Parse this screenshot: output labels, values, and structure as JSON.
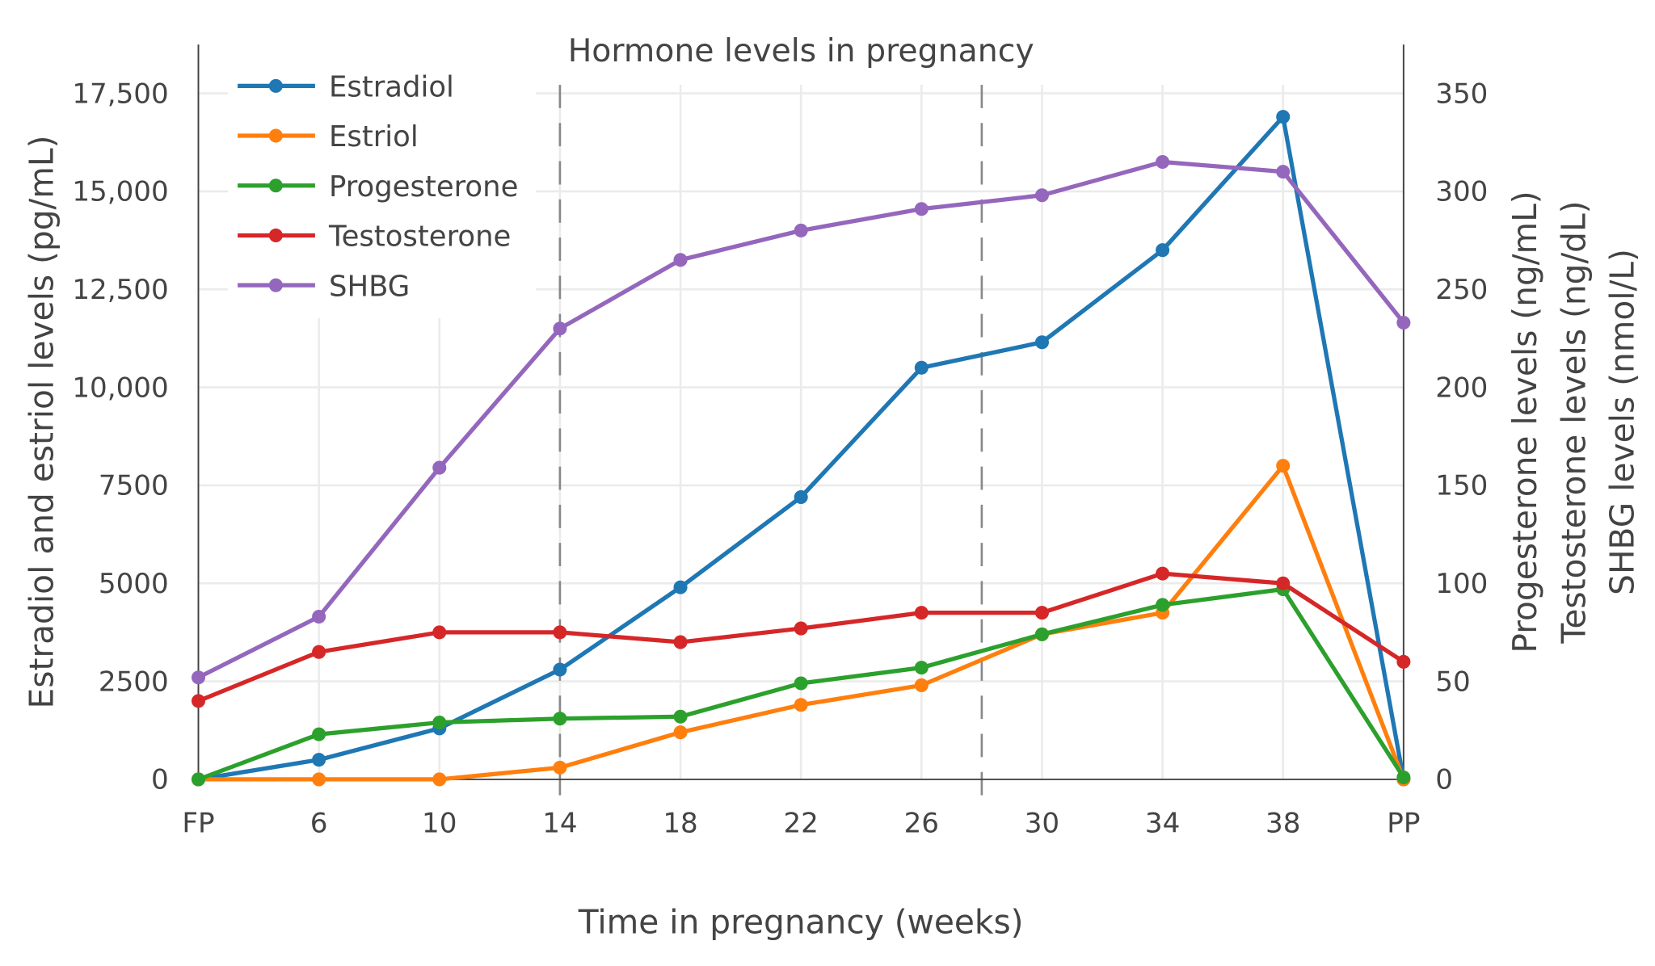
{
  "chart_data": {
    "type": "line",
    "title": "Hormone levels in pregnancy",
    "xlabel": "Time in pregnancy (weeks)",
    "ylabel_left": "Estradiol and estriol levels (pg/mL)",
    "ylabel_right": [
      "Progesterone levels (ng/mL)",
      "Testosterone levels (ng/dL)",
      "SHBG levels (nmol/L)"
    ],
    "categories": [
      "FP",
      "6",
      "10",
      "14",
      "18",
      "22",
      "26",
      "30",
      "34",
      "38",
      "PP"
    ],
    "ylim_left": [
      0,
      17500
    ],
    "ylim_right": [
      0,
      350
    ],
    "yticks_left": [
      "17,500",
      "15,000",
      "12,500",
      "10,000",
      "7500",
      "5000",
      "2500",
      "0"
    ],
    "yticks_left_values": [
      17500,
      15000,
      12500,
      10000,
      7500,
      5000,
      2500,
      0
    ],
    "yticks_right": [
      "350",
      "300",
      "250",
      "200",
      "150",
      "100",
      "50",
      "0"
    ],
    "yticks_right_values": [
      350,
      300,
      250,
      200,
      150,
      100,
      50,
      0
    ],
    "vertical_dashed_lines_weeks": [
      14,
      28
    ],
    "grid": true,
    "legend_placement": "top-left",
    "series": [
      {
        "name": "Estradiol",
        "axis": "left",
        "color": "#1f77b4",
        "values": [
          0,
          500,
          1300,
          2800,
          4900,
          7200,
          10500,
          11150,
          13500,
          16900,
          0
        ]
      },
      {
        "name": "Estriol",
        "axis": "left",
        "color": "#ff7f0e",
        "values": [
          0,
          0,
          0,
          300,
          1200,
          1900,
          2400,
          3700,
          4250,
          8000,
          0
        ]
      },
      {
        "name": "Progesterone",
        "axis": "right",
        "color": "#2ca02c",
        "values": [
          0,
          23,
          29,
          31,
          32,
          49,
          57,
          74,
          89,
          97,
          1
        ]
      },
      {
        "name": "Testosterone",
        "axis": "right",
        "color": "#d62728",
        "values": [
          40,
          65,
          75,
          75,
          70,
          77,
          85,
          85,
          105,
          100,
          60
        ]
      },
      {
        "name": "SHBG",
        "axis": "right",
        "color": "#9467bd",
        "values": [
          52,
          83,
          159,
          230,
          265,
          280,
          291,
          298,
          315,
          310,
          233
        ]
      }
    ]
  }
}
